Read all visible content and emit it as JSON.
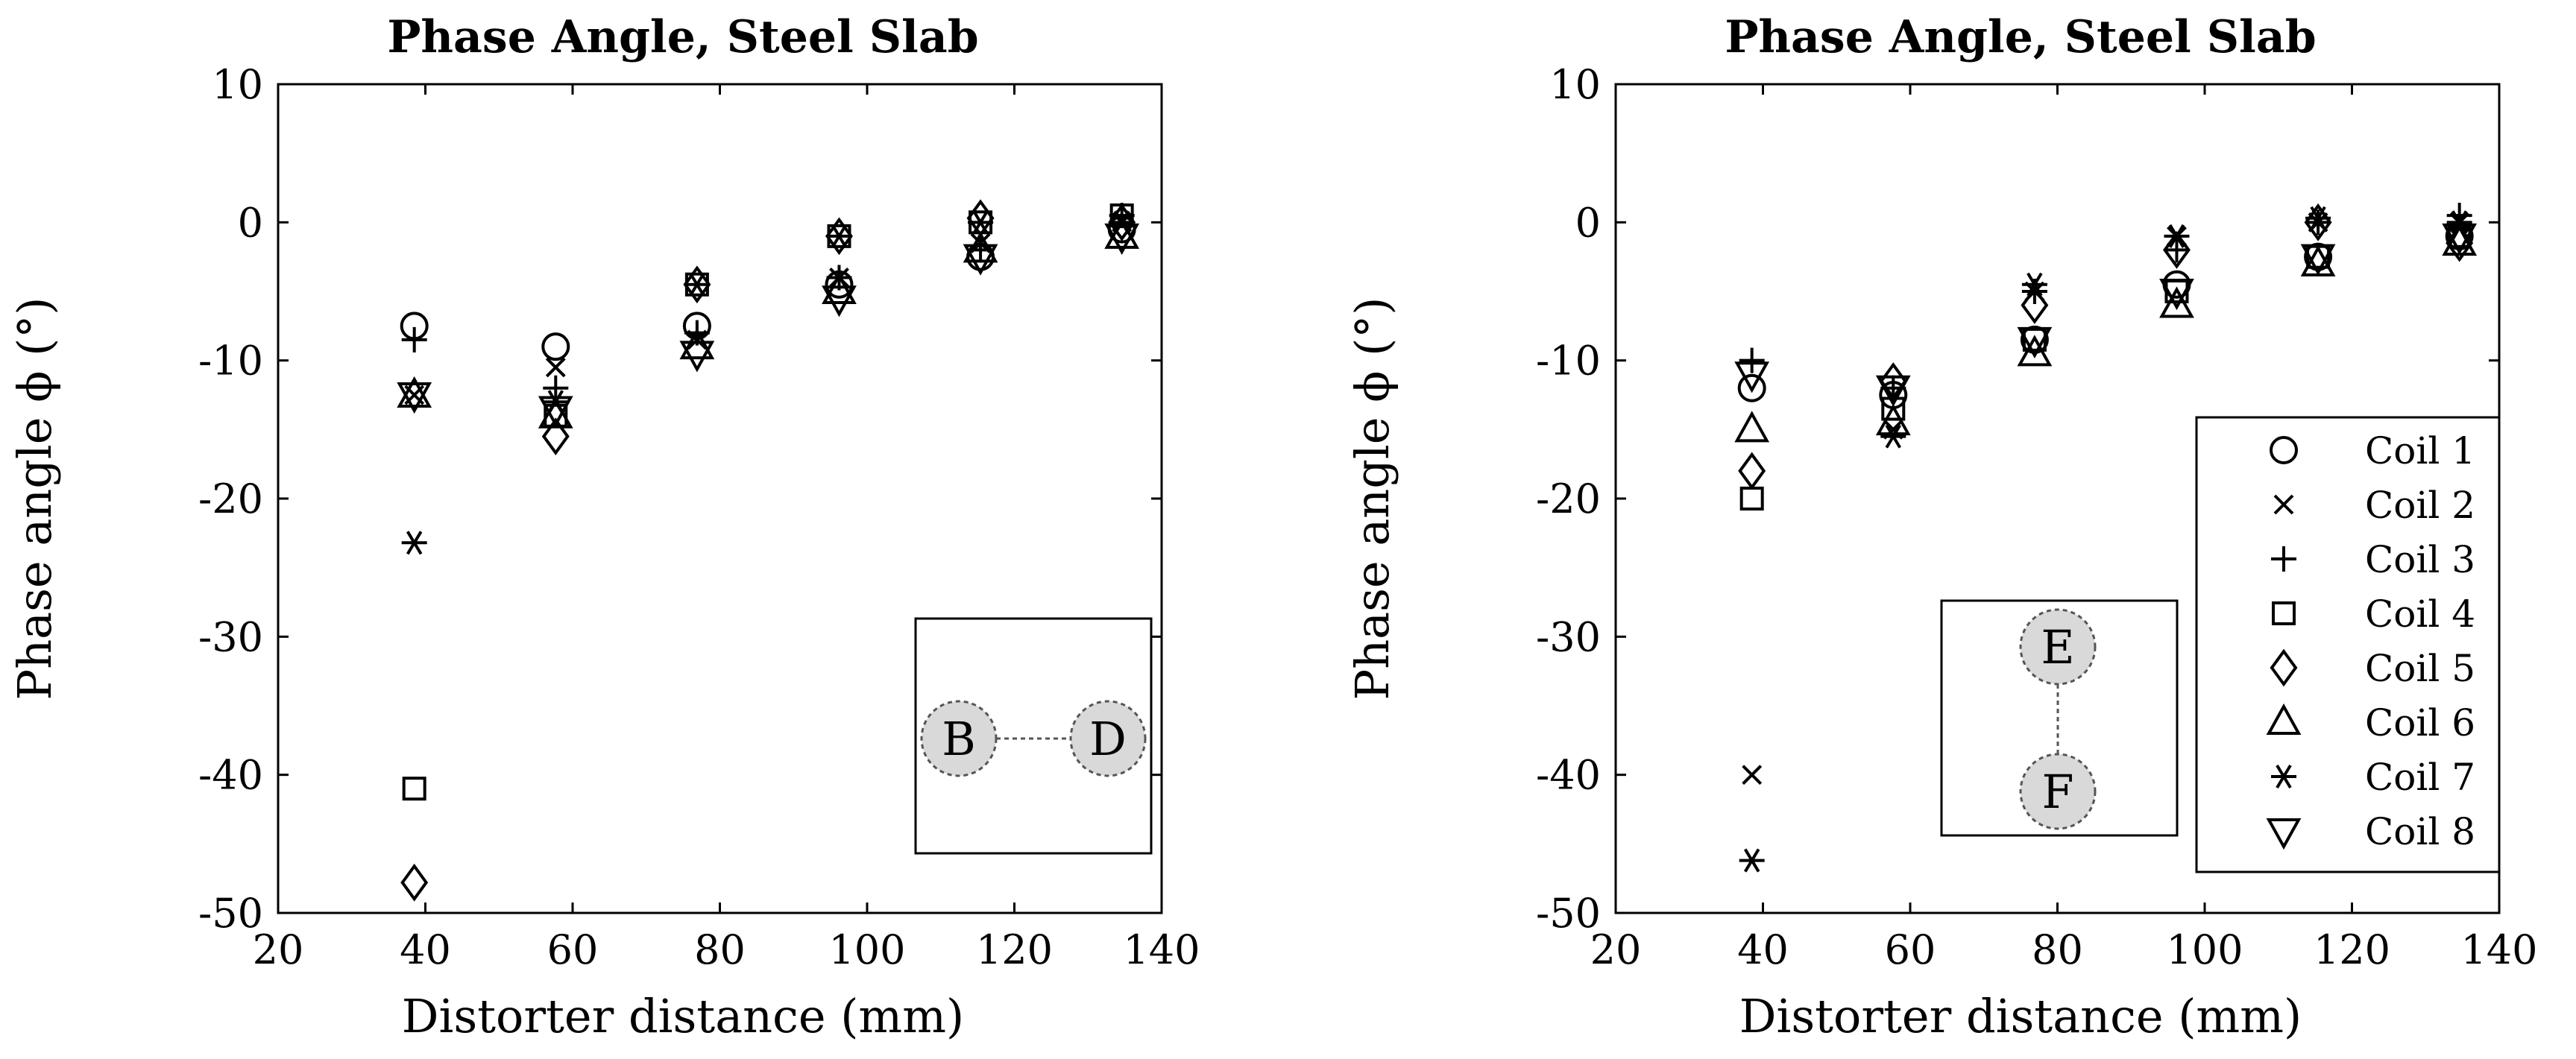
{
  "chart_data": [
    {
      "type": "scatter",
      "title": "Phase Angle, Steel Slab",
      "xlabel": "Distorter distance (mm)",
      "ylabel": "Phase angle ϕ (°)",
      "xlim": [
        20,
        140
      ],
      "ylim": [
        -50,
        10
      ],
      "xticks": [
        20,
        40,
        60,
        80,
        100,
        120,
        140
      ],
      "yticks": [
        -50,
        -40,
        -30,
        -20,
        -10,
        0,
        10
      ],
      "inset_nodes": [
        "B",
        "D"
      ],
      "inset_layout": "horizontal",
      "series": [
        {
          "name": "Coil 1",
          "marker": "circle",
          "x": [
            38.5,
            57.7,
            76.9,
            96.2,
            115.4,
            134.6
          ],
          "y": [
            -7.5,
            -9.0,
            -7.5,
            -4.5,
            -2.5,
            -0.5
          ]
        },
        {
          "name": "Coil 2",
          "marker": "x",
          "x": [
            38.5,
            57.7,
            76.9,
            96.2,
            115.4,
            134.6
          ],
          "y": [
            -12.5,
            -10.5,
            -8.5,
            -4.0,
            -1.5,
            0.0
          ]
        },
        {
          "name": "Coil 3",
          "marker": "plus",
          "x": [
            38.5,
            57.7,
            76.9,
            96.2,
            115.4,
            134.6
          ],
          "y": [
            -8.5,
            -12.0,
            -8.0,
            -4.0,
            -2.0,
            0.5
          ]
        },
        {
          "name": "Coil 4",
          "marker": "square",
          "x": [
            38.5,
            57.7,
            76.9,
            96.2,
            115.4,
            134.6
          ],
          "y": [
            -41.0,
            -14.0,
            -4.5,
            -1.0,
            0.0,
            0.5
          ]
        },
        {
          "name": "Coil 5",
          "marker": "diamond",
          "x": [
            38.5,
            57.7,
            76.9,
            96.2,
            115.4,
            134.6
          ],
          "y": [
            -47.8,
            -15.5,
            -4.5,
            -1.0,
            0.3,
            0.0
          ]
        },
        {
          "name": "Coil 6",
          "marker": "triangle-up",
          "x": [
            38.5,
            57.7,
            76.9,
            96.2,
            115.4,
            134.6
          ],
          "y": [
            -12.5,
            -14.0,
            -9.0,
            -5.0,
            -2.0,
            -1.0
          ]
        },
        {
          "name": "Coil 7",
          "marker": "asterisk",
          "x": [
            38.5,
            57.7,
            76.9,
            96.2,
            115.4,
            134.6
          ],
          "y": [
            -23.2,
            -13.0,
            -4.5,
            -1.0,
            0.0,
            0.0
          ]
        },
        {
          "name": "Coil 8",
          "marker": "triangle-down",
          "x": [
            38.5,
            57.7,
            76.9,
            96.2,
            115.4,
            134.6
          ],
          "y": [
            -12.5,
            -13.5,
            -9.5,
            -5.5,
            -2.5,
            -1.0
          ]
        }
      ]
    },
    {
      "type": "scatter",
      "title": "Phase Angle, Steel Slab",
      "xlabel": "Distorter distance (mm)",
      "ylabel": "Phase angle ϕ (°)",
      "xlim": [
        20,
        140
      ],
      "ylim": [
        -50,
        10
      ],
      "xticks": [
        20,
        40,
        60,
        80,
        100,
        120,
        140
      ],
      "yticks": [
        -50,
        -40,
        -30,
        -20,
        -10,
        0,
        10
      ],
      "inset_nodes": [
        "E",
        "F"
      ],
      "inset_layout": "vertical",
      "legend_position": "bottom-right",
      "series": [
        {
          "name": "Coil 1",
          "marker": "circle",
          "x": [
            38.5,
            57.7,
            76.9,
            96.2,
            115.4,
            134.6
          ],
          "y": [
            -12.0,
            -12.5,
            -8.5,
            -4.5,
            -2.5,
            -1.0
          ]
        },
        {
          "name": "Coil 2",
          "marker": "x",
          "x": [
            38.5,
            57.7,
            76.9,
            96.2,
            115.4,
            134.6
          ],
          "y": [
            -40.0,
            -15.0,
            -5.0,
            -1.0,
            0.0,
            0.0
          ]
        },
        {
          "name": "Coil 3",
          "marker": "plus",
          "x": [
            38.5,
            57.7,
            76.9,
            96.2,
            115.4,
            134.6
          ],
          "y": [
            -10.0,
            -12.0,
            -5.0,
            -2.0,
            0.0,
            0.5
          ]
        },
        {
          "name": "Coil 4",
          "marker": "square",
          "x": [
            38.5,
            57.7,
            76.9,
            96.2,
            115.4,
            134.6
          ],
          "y": [
            -20.0,
            -13.5,
            -8.5,
            -5.0,
            -2.5,
            -1.0
          ]
        },
        {
          "name": "Coil 5",
          "marker": "diamond",
          "x": [
            38.5,
            57.7,
            76.9,
            96.2,
            115.4,
            134.6
          ],
          "y": [
            -18.0,
            -11.5,
            -6.0,
            -2.0,
            0.0,
            -1.5
          ]
        },
        {
          "name": "Coil 6",
          "marker": "triangle-up",
          "x": [
            38.5,
            57.7,
            76.9,
            96.2,
            115.4,
            134.6
          ],
          "y": [
            -15.0,
            -14.5,
            -9.5,
            -6.0,
            -3.0,
            -1.5
          ]
        },
        {
          "name": "Coil 7",
          "marker": "asterisk",
          "x": [
            38.5,
            57.7,
            76.9,
            96.2,
            115.4,
            134.6
          ],
          "y": [
            -46.2,
            -15.5,
            -4.5,
            -1.0,
            0.3,
            0.0
          ]
        },
        {
          "name": "Coil 8",
          "marker": "triangle-down",
          "x": [
            38.5,
            57.7,
            76.9,
            96.2,
            115.4,
            134.6
          ],
          "y": [
            -11.0,
            -12.0,
            -8.5,
            -5.0,
            -2.5,
            -1.0
          ]
        }
      ]
    }
  ]
}
